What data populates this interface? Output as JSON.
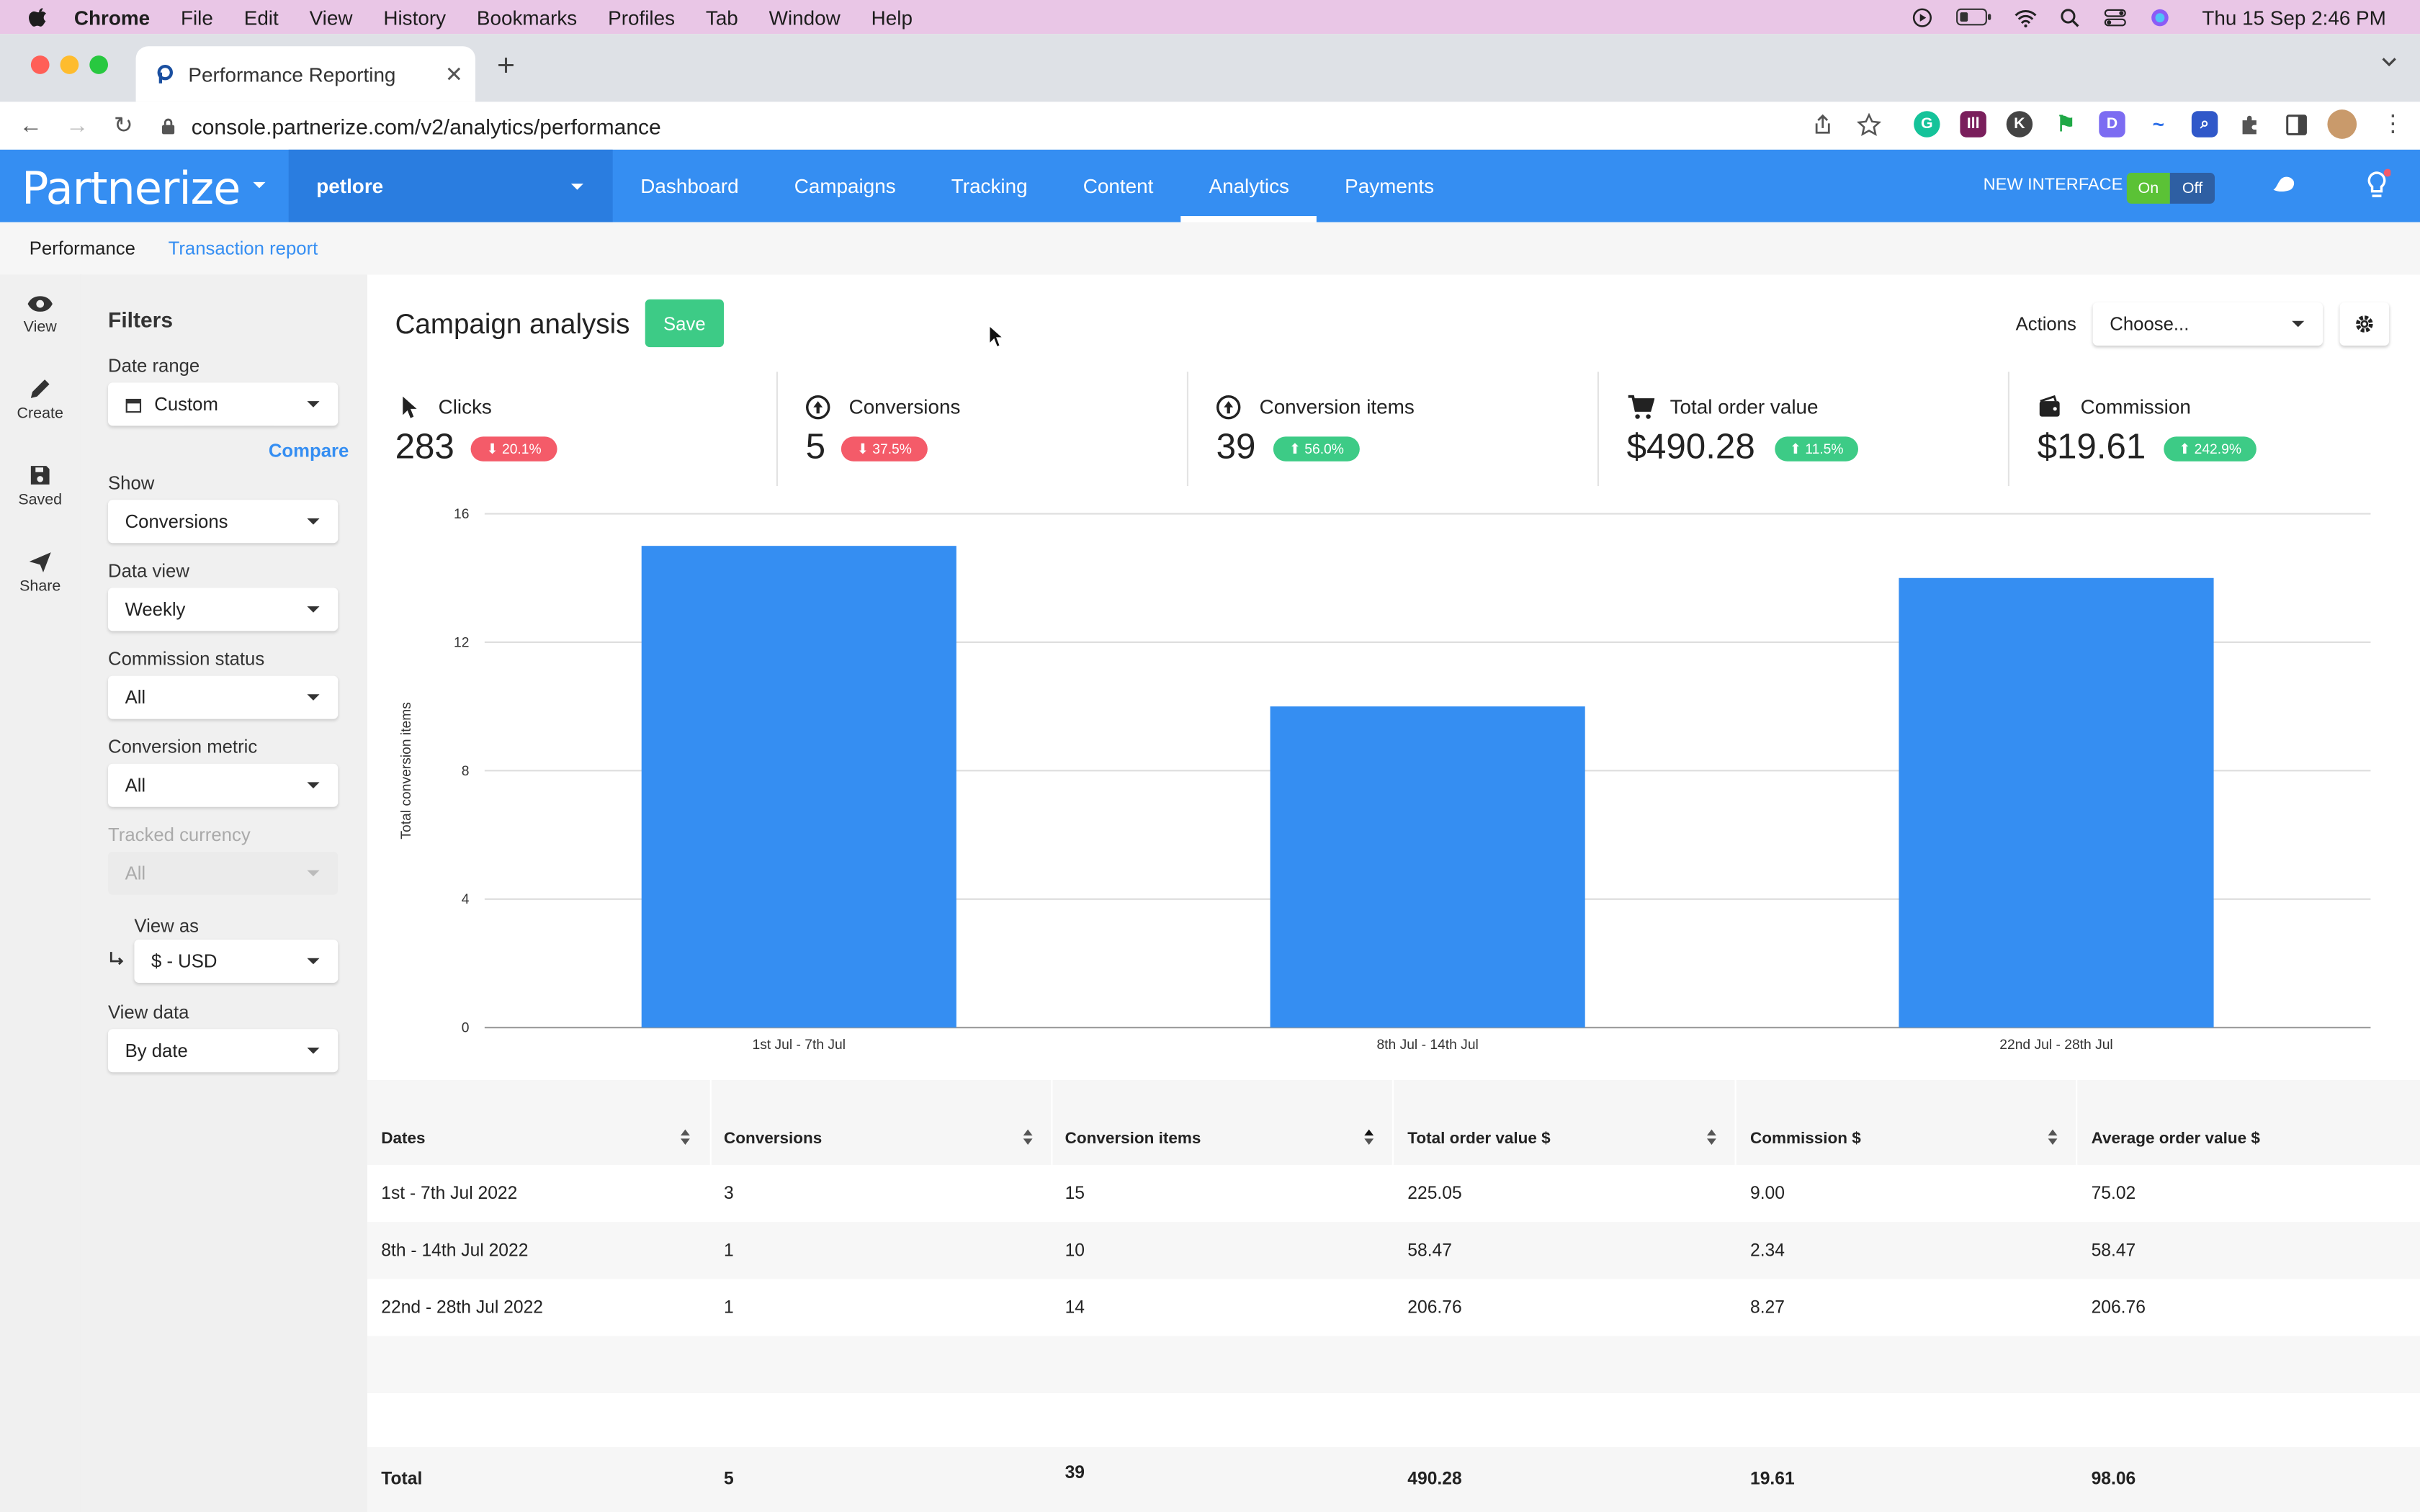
{
  "macbar": {
    "app": "Chrome",
    "menus": [
      "File",
      "Edit",
      "View",
      "History",
      "Bookmarks",
      "Profiles",
      "Tab",
      "Window",
      "Help"
    ],
    "datetime": "Thu 15 Sep  2:46 PM"
  },
  "browser": {
    "tab_title": "Performance Reporting",
    "url": "console.partnerize.com/v2/analytics/performance"
  },
  "header": {
    "logo": "Partnerize",
    "account": "petlore",
    "nav": [
      "Dashboard",
      "Campaigns",
      "Tracking",
      "Content",
      "Analytics",
      "Payments"
    ],
    "active_nav": "Analytics",
    "new_interface": "NEW INTERFACE",
    "toggle_on": "On",
    "toggle_off": "Off"
  },
  "subnav": {
    "performance": "Performance",
    "transaction": "Transaction report"
  },
  "rail": [
    {
      "label": "View",
      "icon": "eye-icon"
    },
    {
      "label": "Create",
      "icon": "pencil-icon"
    },
    {
      "label": "Saved",
      "icon": "floppy-icon"
    },
    {
      "label": "Share",
      "icon": "send-icon"
    }
  ],
  "filters": {
    "title": "Filters",
    "date_range_label": "Date range",
    "date_range_value": "Custom",
    "compare": "Compare",
    "show_label": "Show",
    "show_value": "Conversions",
    "data_view_label": "Data view",
    "data_view_value": "Weekly",
    "commission_status_label": "Commission status",
    "commission_status_value": "All",
    "conversion_metric_label": "Conversion metric",
    "conversion_metric_value": "All",
    "tracked_currency_label": "Tracked currency",
    "tracked_currency_value": "All",
    "view_as_label": "View as",
    "view_as_value": "$ - USD",
    "view_data_label": "View data",
    "view_data_value": "By date"
  },
  "main": {
    "title": "Campaign analysis",
    "save": "Save",
    "actions_label": "Actions",
    "actions_value": "Choose..."
  },
  "kpis": [
    {
      "name": "Clicks",
      "value": "283",
      "change": "20.1%",
      "direction": "down",
      "icon": "cursor-icon"
    },
    {
      "name": "Conversions",
      "value": "5",
      "change": "37.5%",
      "direction": "down",
      "icon": "conversion-icon"
    },
    {
      "name": "Conversion items",
      "value": "39",
      "change": "56.0%",
      "direction": "up",
      "icon": "conversion-items-icon"
    },
    {
      "name": "Total order value",
      "value": "$490.28",
      "change": "11.5%",
      "direction": "up",
      "icon": "cart-icon"
    },
    {
      "name": "Commission",
      "value": "$19.61",
      "change": "242.9%",
      "direction": "up",
      "icon": "wallet-icon"
    }
  ],
  "chart_data": {
    "type": "bar",
    "categories": [
      "1st Jul - 7th Jul",
      "8th Jul - 14th Jul",
      "22nd Jul - 28th Jul"
    ],
    "values": [
      15,
      10,
      14
    ],
    "ylabel": "Total conversion items",
    "ylim": [
      0,
      16
    ],
    "yticks": [
      0,
      4,
      8,
      12,
      16
    ],
    "grid": true,
    "color": "#358ef2"
  },
  "table": {
    "columns": [
      "Dates",
      "Conversions",
      "Conversion items",
      "Total order value $",
      "Commission $",
      "Average order value $"
    ],
    "rows": [
      [
        "1st - 7th Jul 2022",
        "3",
        "15",
        "225.05",
        "9.00",
        "75.02"
      ],
      [
        "8th - 14th Jul 2022",
        "1",
        "10",
        "58.47",
        "2.34",
        "58.47"
      ],
      [
        "22nd - 28th Jul 2022",
        "1",
        "14",
        "206.76",
        "8.27",
        "206.76"
      ]
    ],
    "total": [
      "Total",
      "5",
      "39",
      "490.28",
      "19.61",
      "98.06"
    ]
  },
  "colors": {
    "brand": "#358ef2",
    "save": "#3dcb86",
    "down": "#f45b69",
    "up": "#3dcb86"
  }
}
